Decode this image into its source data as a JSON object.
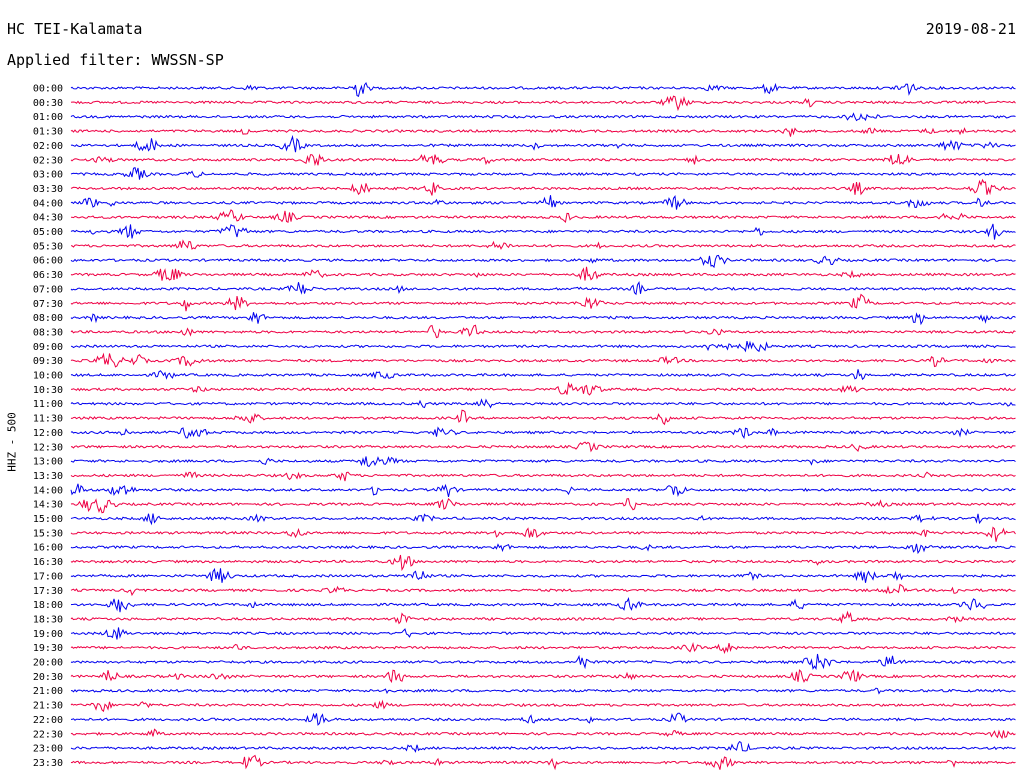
{
  "header": {
    "station": "HC TEI-Kalamata",
    "filter": "Applied filter: WWSSN-SP",
    "date": "2019-08-21",
    "channel": "HHZ - 500"
  },
  "chart_data": {
    "type": "line",
    "ylabel": "HHZ - 500",
    "colors": [
      "#0000ee",
      "#ee0044"
    ],
    "lines": [
      "00:00",
      "00:30",
      "01:00",
      "01:30",
      "02:00",
      "02:30",
      "03:00",
      "03:30",
      "04:00",
      "04:30",
      "05:00",
      "05:30",
      "06:00",
      "06:30",
      "07:00",
      "07:30",
      "08:00",
      "08:30",
      "09:00",
      "09:30",
      "10:00",
      "10:30",
      "11:00",
      "11:30",
      "12:00",
      "12:30",
      "13:00",
      "13:30",
      "14:00",
      "14:30",
      "15:00",
      "15:30",
      "16:00",
      "16:30",
      "17:00",
      "17:30",
      "18:00",
      "18:30",
      "19:00",
      "19:30",
      "20:00",
      "20:30",
      "21:00",
      "21:30",
      "22:00",
      "22:30",
      "23:00",
      "23:30"
    ]
  }
}
